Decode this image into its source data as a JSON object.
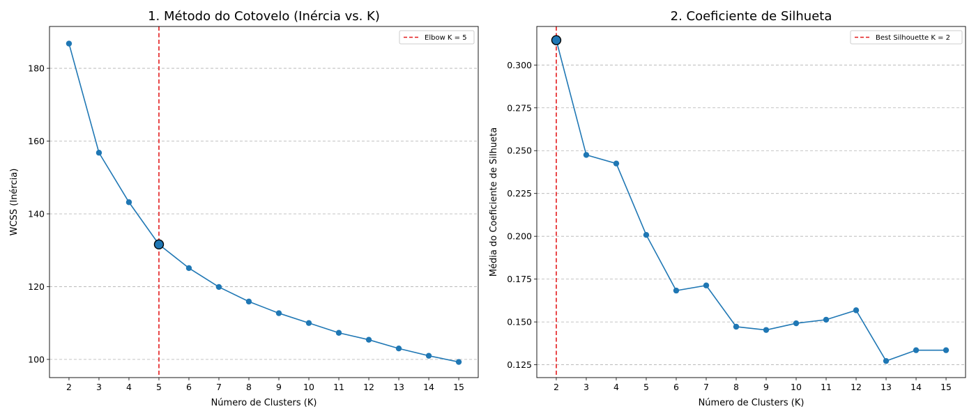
{
  "chart_data": [
    {
      "type": "line",
      "title": "1. Método do Cotovelo (Inércia vs. K)",
      "xlabel": "Número de Clusters (K)",
      "ylabel": "WCSS (Inércia)",
      "xlim": [
        1.35,
        15.65
      ],
      "ylim": [
        95.0,
        191.5
      ],
      "xticks": [
        2,
        3,
        4,
        5,
        6,
        7,
        8,
        9,
        10,
        11,
        12,
        13,
        14,
        15
      ],
      "yticks": [
        100,
        120,
        140,
        160,
        180
      ],
      "ytick_labels": [
        "100",
        "120",
        "140",
        "160",
        "180"
      ],
      "grid": "y-dashed",
      "line_color": "#1f77b4",
      "vline_color": "#e31a1c",
      "series": [
        {
          "x": [
            2,
            3,
            4,
            5,
            6,
            7,
            8,
            9,
            10,
            11,
            12,
            13,
            14,
            15
          ],
          "values": [
            186.8,
            156.8,
            143.2,
            131.6,
            125.1,
            119.9,
            115.9,
            112.7,
            110.0,
            107.3,
            105.4,
            103.0,
            101.0,
            99.3
          ]
        }
      ],
      "highlight": {
        "x": 5,
        "y": 131.6
      },
      "vline": {
        "x": 5
      },
      "legend": {
        "position": "top-right",
        "label": "Elbow K = 5"
      }
    },
    {
      "type": "line",
      "title": "2. Coeficiente de Silhueta",
      "xlabel": "Número de Clusters (K)",
      "ylabel": "Média do Coeficiente de Silhueta",
      "xlim": [
        1.35,
        15.65
      ],
      "ylim": [
        0.1175,
        0.3225
      ],
      "xticks": [
        2,
        3,
        4,
        5,
        6,
        7,
        8,
        9,
        10,
        11,
        12,
        13,
        14,
        15
      ],
      "yticks": [
        0.125,
        0.15,
        0.175,
        0.2,
        0.225,
        0.25,
        0.275,
        0.3
      ],
      "ytick_labels": [
        "0.125",
        "0.150",
        "0.175",
        "0.200",
        "0.225",
        "0.250",
        "0.275",
        "0.300"
      ],
      "grid": "y-dashed",
      "line_color": "#1f77b4",
      "vline_color": "#e31a1c",
      "series": [
        {
          "x": [
            2,
            3,
            4,
            5,
            6,
            7,
            8,
            9,
            10,
            11,
            12,
            13,
            14,
            15
          ],
          "values": [
            0.3145,
            0.2475,
            0.2425,
            0.2008,
            0.1683,
            0.1713,
            0.1472,
            0.1453,
            0.1492,
            0.1513,
            0.1568,
            0.1272,
            0.1335,
            0.1335
          ]
        }
      ],
      "highlight": {
        "x": 2,
        "y": 0.3145
      },
      "vline": {
        "x": 2
      },
      "legend": {
        "position": "top-right",
        "label": "Best Silhouette K = 2"
      }
    }
  ]
}
